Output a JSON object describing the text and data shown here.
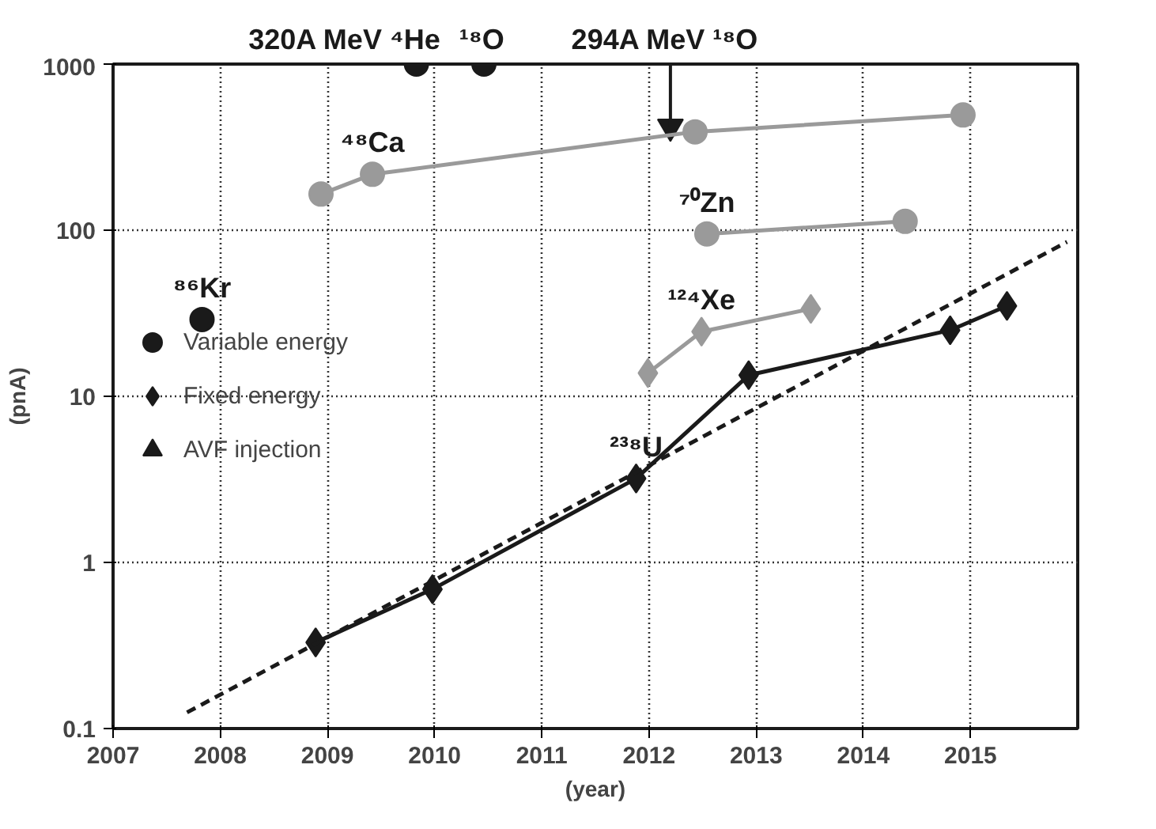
{
  "chart_data": {
    "type": "line",
    "xlabel": "(year)",
    "ylabel": "(pnA)",
    "log": "y",
    "xlim": [
      2007,
      2016
    ],
    "xticks": [
      2007,
      2008,
      2009,
      2010,
      2011,
      2012,
      2013,
      2014,
      2015
    ],
    "ylim": [
      0.1,
      1000
    ],
    "yticks": [
      0.1,
      1,
      10,
      100,
      1000
    ],
    "grid": true,
    "legend": "left",
    "series": [
      {
        "name": "Variable energy",
        "type": "scatter",
        "marker": "circle",
        "color": "#1a1a1a",
        "x": [
          2007.83,
          2009.83,
          2010.46
        ],
        "values": [
          29,
          1000,
          1000
        ]
      },
      {
        "name": "Fixed energy",
        "marker": "diamond",
        "color": "#1a1a1a",
        "x": [
          2008.89,
          2009.98,
          2011.88,
          2012.93,
          2014.81,
          2015.34
        ],
        "values": [
          0.33,
          0.69,
          3.2,
          13.4,
          25,
          35
        ]
      },
      {
        "name": "AVF injection",
        "type": "scatter",
        "marker": "triangle",
        "color": "#1a1a1a",
        "x": [
          2012.2
        ],
        "values": [
          420
        ]
      },
      {
        "marker": "circle",
        "color": "#9a9a9a",
        "x": [
          2008.94,
          2009.42,
          2012.43,
          2014.93
        ],
        "values": [
          165,
          217,
          391,
          494
        ]
      },
      {
        "marker": "circle",
        "color": "#9a9a9a",
        "x": [
          2012.54,
          2014.39
        ],
        "values": [
          95,
          113
        ]
      },
      {
        "marker": "diamond",
        "color": "#9a9a9a",
        "x": [
          2011.99,
          2012.49,
          2013.51
        ],
        "values": [
          13.8,
          24.5,
          33.6
        ]
      },
      {
        "marker": "none",
        "line_style": "dashed",
        "color": "#1a1a1a",
        "x": [
          2007.69,
          2015.9
        ],
        "values": [
          0.125,
          85
        ]
      }
    ],
    "annotations": [
      {
        "text": "320A MeV ⁴He",
        "x": 2009.83,
        "y": 1000
      },
      {
        "text": "¹⁸O",
        "x": 2010.46,
        "y": 1000
      },
      {
        "text": "294A MeV ¹⁸O",
        "x": 2012.2,
        "y": 420
      },
      {
        "text": "⁸⁶Kr",
        "x": 2007.83,
        "y": 29
      },
      {
        "text": "⁴⁸Ca",
        "x": 2009.42,
        "y": 217
      },
      {
        "text": "⁷⁰Zn",
        "x": 2012.54,
        "y": 95
      },
      {
        "text": "¹²⁴Xe",
        "x": 2012.49,
        "y": 24.5
      },
      {
        "text": "²³⁸U",
        "x": 2011.88,
        "y": 3.2
      }
    ]
  }
}
